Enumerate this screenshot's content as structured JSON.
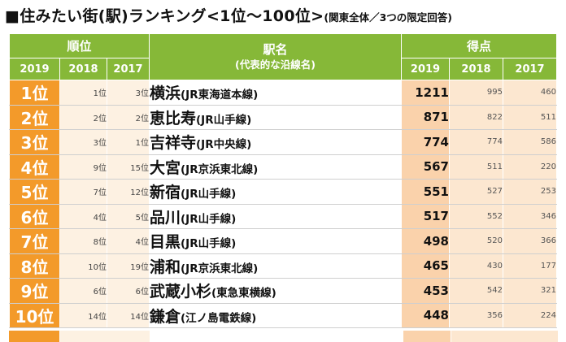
{
  "title": {
    "main": "■住みたい街(駅)ランキング<1位～100位>",
    "sub": "(関東全体／3つの限定回答)"
  },
  "headers": {
    "rank": "順位",
    "station_line1": "駅名",
    "station_line2": "(代表的な沿線名)",
    "points": "得点",
    "years": [
      "2019",
      "2018",
      "2017"
    ]
  },
  "rows": [
    {
      "rank2019": "1位",
      "rank2018": "1位",
      "rank2017": "3位",
      "station": "横浜",
      "line": "(JR東海道本線)",
      "p2019": "1211",
      "p2018": "995",
      "p2017": "460"
    },
    {
      "rank2019": "2位",
      "rank2018": "2位",
      "rank2017": "2位",
      "station": "恵比寿",
      "line": "(JR山手線)",
      "p2019": "871",
      "p2018": "822",
      "p2017": "511"
    },
    {
      "rank2019": "3位",
      "rank2018": "3位",
      "rank2017": "1位",
      "station": "吉祥寺",
      "line": "(JR中央線)",
      "p2019": "774",
      "p2018": "774",
      "p2017": "586"
    },
    {
      "rank2019": "4位",
      "rank2018": "9位",
      "rank2017": "15位",
      "station": "大宮",
      "line": "(JR京浜東北線)",
      "p2019": "567",
      "p2018": "511",
      "p2017": "220"
    },
    {
      "rank2019": "5位",
      "rank2018": "7位",
      "rank2017": "12位",
      "station": "新宿",
      "line": "(JR山手線)",
      "p2019": "551",
      "p2018": "527",
      "p2017": "253"
    },
    {
      "rank2019": "6位",
      "rank2018": "4位",
      "rank2017": "5位",
      "station": "品川",
      "line": "(JR山手線)",
      "p2019": "517",
      "p2018": "552",
      "p2017": "346"
    },
    {
      "rank2019": "7位",
      "rank2018": "8位",
      "rank2017": "4位",
      "station": "目黒",
      "line": "(JR山手線)",
      "p2019": "498",
      "p2018": "520",
      "p2017": "366"
    },
    {
      "rank2019": "8位",
      "rank2018": "10位",
      "rank2017": "19位",
      "station": "浦和",
      "line": "(JR京浜東北線)",
      "p2019": "465",
      "p2018": "430",
      "p2017": "177"
    },
    {
      "rank2019": "9位",
      "rank2018": "6位",
      "rank2017": "6位",
      "station": "武蔵小杉",
      "line": "(東急東横線)",
      "p2019": "453",
      "p2018": "542",
      "p2017": "321"
    },
    {
      "rank2019": "10位",
      "rank2018": "14位",
      "rank2017": "14位",
      "station": "鎌倉",
      "line": "(江ノ島電鉄線)",
      "p2019": "448",
      "p2018": "356",
      "p2017": "224"
    }
  ],
  "colors": {
    "header_green": "#86b838",
    "rank_orange": "#f39a2a",
    "rank_pale": "#fdf1e2",
    "points_2019": "#fad2ab",
    "points_pale": "#fce7d0"
  }
}
